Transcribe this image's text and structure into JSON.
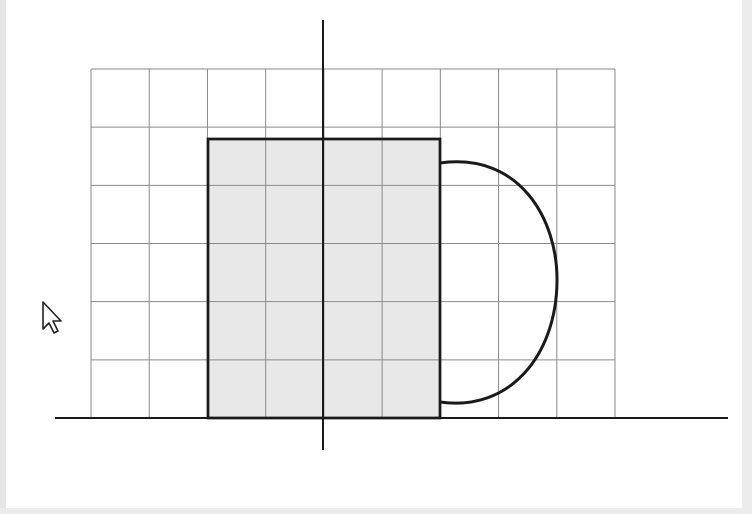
{
  "diagram": {
    "subject": "mug-cross-section-on-grid",
    "grid": {
      "columns": 9,
      "rows": 6
    },
    "colors": {
      "grid_line": "#8a8a8a",
      "outline": "#1a1a1a",
      "mug_fill": "#e8e8e8",
      "background": "#ffffff"
    },
    "mug": {
      "span_columns": 4,
      "span_rows": 4.8,
      "handle": "semicircle-right"
    }
  },
  "cursor": {
    "icon": "mouse-pointer-icon"
  }
}
